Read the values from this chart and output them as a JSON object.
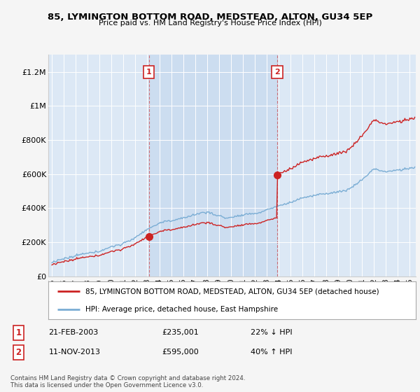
{
  "title": "85, LYMINGTON BOTTOM ROAD, MEDSTEAD, ALTON, GU34 5EP",
  "subtitle": "Price paid vs. HM Land Registry's House Price Index (HPI)",
  "plot_bg": "#dce8f5",
  "fig_bg": "#f5f5f5",
  "sale1_date": 2003.13,
  "sale1_price": 235001,
  "sale2_date": 2013.87,
  "sale2_price": 595000,
  "legend_line1": "85, LYMINGTON BOTTOM ROAD, MEDSTEAD, ALTON, GU34 5EP (detached house)",
  "legend_line2": "HPI: Average price, detached house, East Hampshire",
  "footer": "Contains HM Land Registry data © Crown copyright and database right 2024.\nThis data is licensed under the Open Government Licence v3.0.",
  "xmin": 1994.7,
  "xmax": 2025.5,
  "ymin": 0,
  "ymax": 1300000,
  "hpi_color": "#7aadd4",
  "prop_color": "#cc2222",
  "shade_color": "#ccddf0"
}
